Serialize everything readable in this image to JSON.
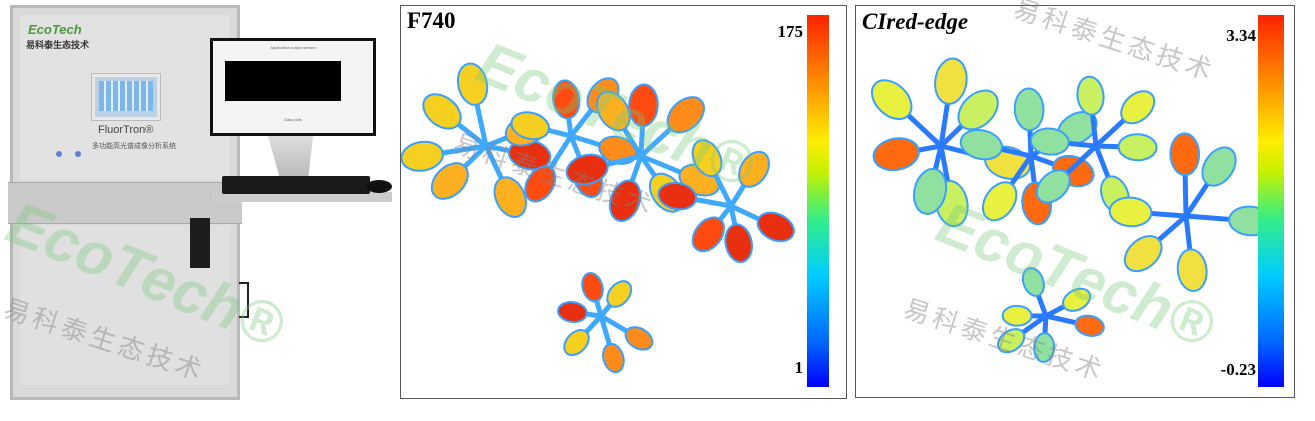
{
  "instrument": {
    "brand": "EcoTech",
    "brand_cn": "易科泰生态技术",
    "product": "FluorTron®",
    "product_cn": "多功能高光谱成像分析系统",
    "monitor_title": "Application output stream",
    "monitor_section": "Data plots"
  },
  "panels": [
    {
      "title": "F740",
      "max_label": "175",
      "min_label": "1"
    },
    {
      "title": "CIred-edge",
      "max_label": "3.34",
      "min_label": "-0.23"
    }
  ],
  "colormap": "jet",
  "watermark": {
    "logo": "EcoTech®",
    "text_cn": "易科泰生态技术"
  }
}
